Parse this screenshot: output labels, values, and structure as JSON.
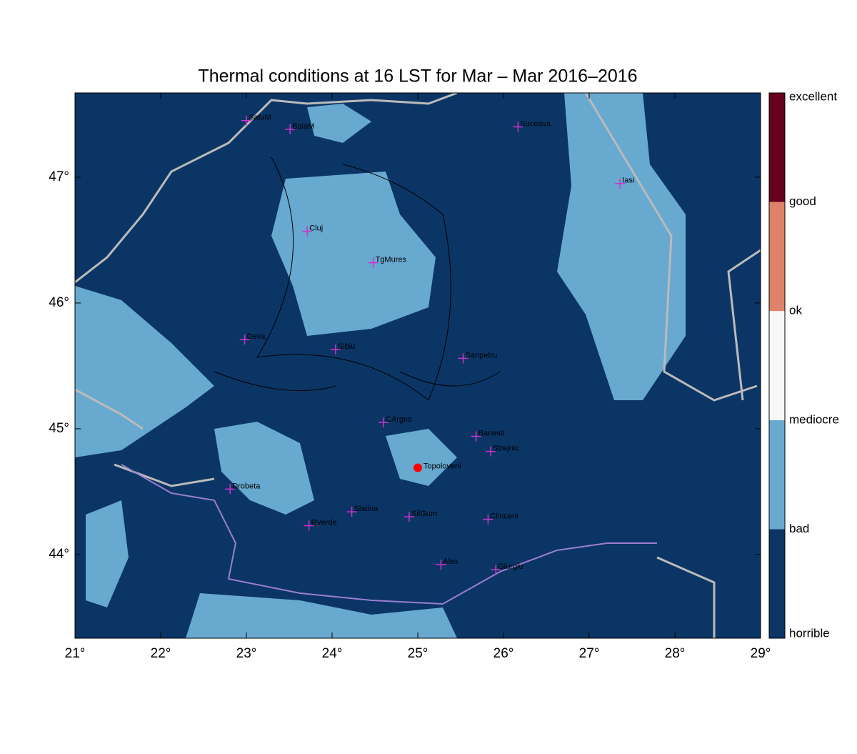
{
  "map": {
    "title": "Thermal conditions at 16 LST for Mar – Mar  2016–2016",
    "xlim": [
      21,
      29
    ],
    "ylim": [
      43.335,
      47.67
    ],
    "xticks": [
      {
        "value": 21,
        "label": "21°"
      },
      {
        "value": 22,
        "label": "22°"
      },
      {
        "value": 23,
        "label": "23°"
      },
      {
        "value": 24,
        "label": "24°"
      },
      {
        "value": 25,
        "label": "25°"
      },
      {
        "value": 26,
        "label": "26°"
      },
      {
        "value": 27,
        "label": "27°"
      },
      {
        "value": 28,
        "label": "28°"
      },
      {
        "value": 29,
        "label": "29°"
      }
    ],
    "yticks": [
      {
        "value": 44,
        "label": "44°"
      },
      {
        "value": 45,
        "label": "45°"
      },
      {
        "value": 46,
        "label": "46°"
      },
      {
        "value": 47,
        "label": "47°"
      }
    ],
    "cities": [
      {
        "name": "SatuM",
        "lon": 23.0,
        "lat": 47.45
      },
      {
        "name": "BaiaM",
        "lon": 23.51,
        "lat": 47.38
      },
      {
        "name": "Suceava",
        "lon": 26.17,
        "lat": 47.4
      },
      {
        "name": "Iasi",
        "lon": 27.36,
        "lat": 46.95
      },
      {
        "name": "Cluj",
        "lon": 23.71,
        "lat": 46.57
      },
      {
        "name": "TgMures",
        "lon": 24.48,
        "lat": 46.32
      },
      {
        "name": "Deva",
        "lon": 22.98,
        "lat": 45.71
      },
      {
        "name": "Sibiu",
        "lon": 24.04,
        "lat": 45.63
      },
      {
        "name": "Sanpetru",
        "lon": 25.53,
        "lat": 45.56
      },
      {
        "name": "CArges",
        "lon": 24.6,
        "lat": 45.05
      },
      {
        "name": "Banesti",
        "lon": 25.68,
        "lat": 44.94
      },
      {
        "name": "Strejnic",
        "lon": 25.85,
        "lat": 44.82
      },
      {
        "name": "Drobeta",
        "lon": 22.81,
        "lat": 44.52
      },
      {
        "name": "Slatina",
        "lon": 24.23,
        "lat": 44.34
      },
      {
        "name": "SilGum",
        "lon": 24.9,
        "lat": 44.3
      },
      {
        "name": "BVerde",
        "lon": 23.73,
        "lat": 44.23
      },
      {
        "name": "Clinceni",
        "lon": 25.82,
        "lat": 44.28
      },
      {
        "name": "Alex",
        "lon": 25.27,
        "lat": 43.92
      },
      {
        "name": "Giurgiu",
        "lon": 25.91,
        "lat": 43.88
      }
    ],
    "site": {
      "name": "Topoloveni",
      "lon": 25.0,
      "lat": 44.69,
      "color": "#ff0000"
    },
    "colorbar": {
      "labels": [
        "horrible",
        "bad",
        "mediocre",
        "ok",
        "good",
        "excellent"
      ],
      "colors": [
        "#0b3565",
        "#67a9cf",
        "#f7f7f7",
        "#e0826a",
        "#67001f"
      ]
    }
  }
}
